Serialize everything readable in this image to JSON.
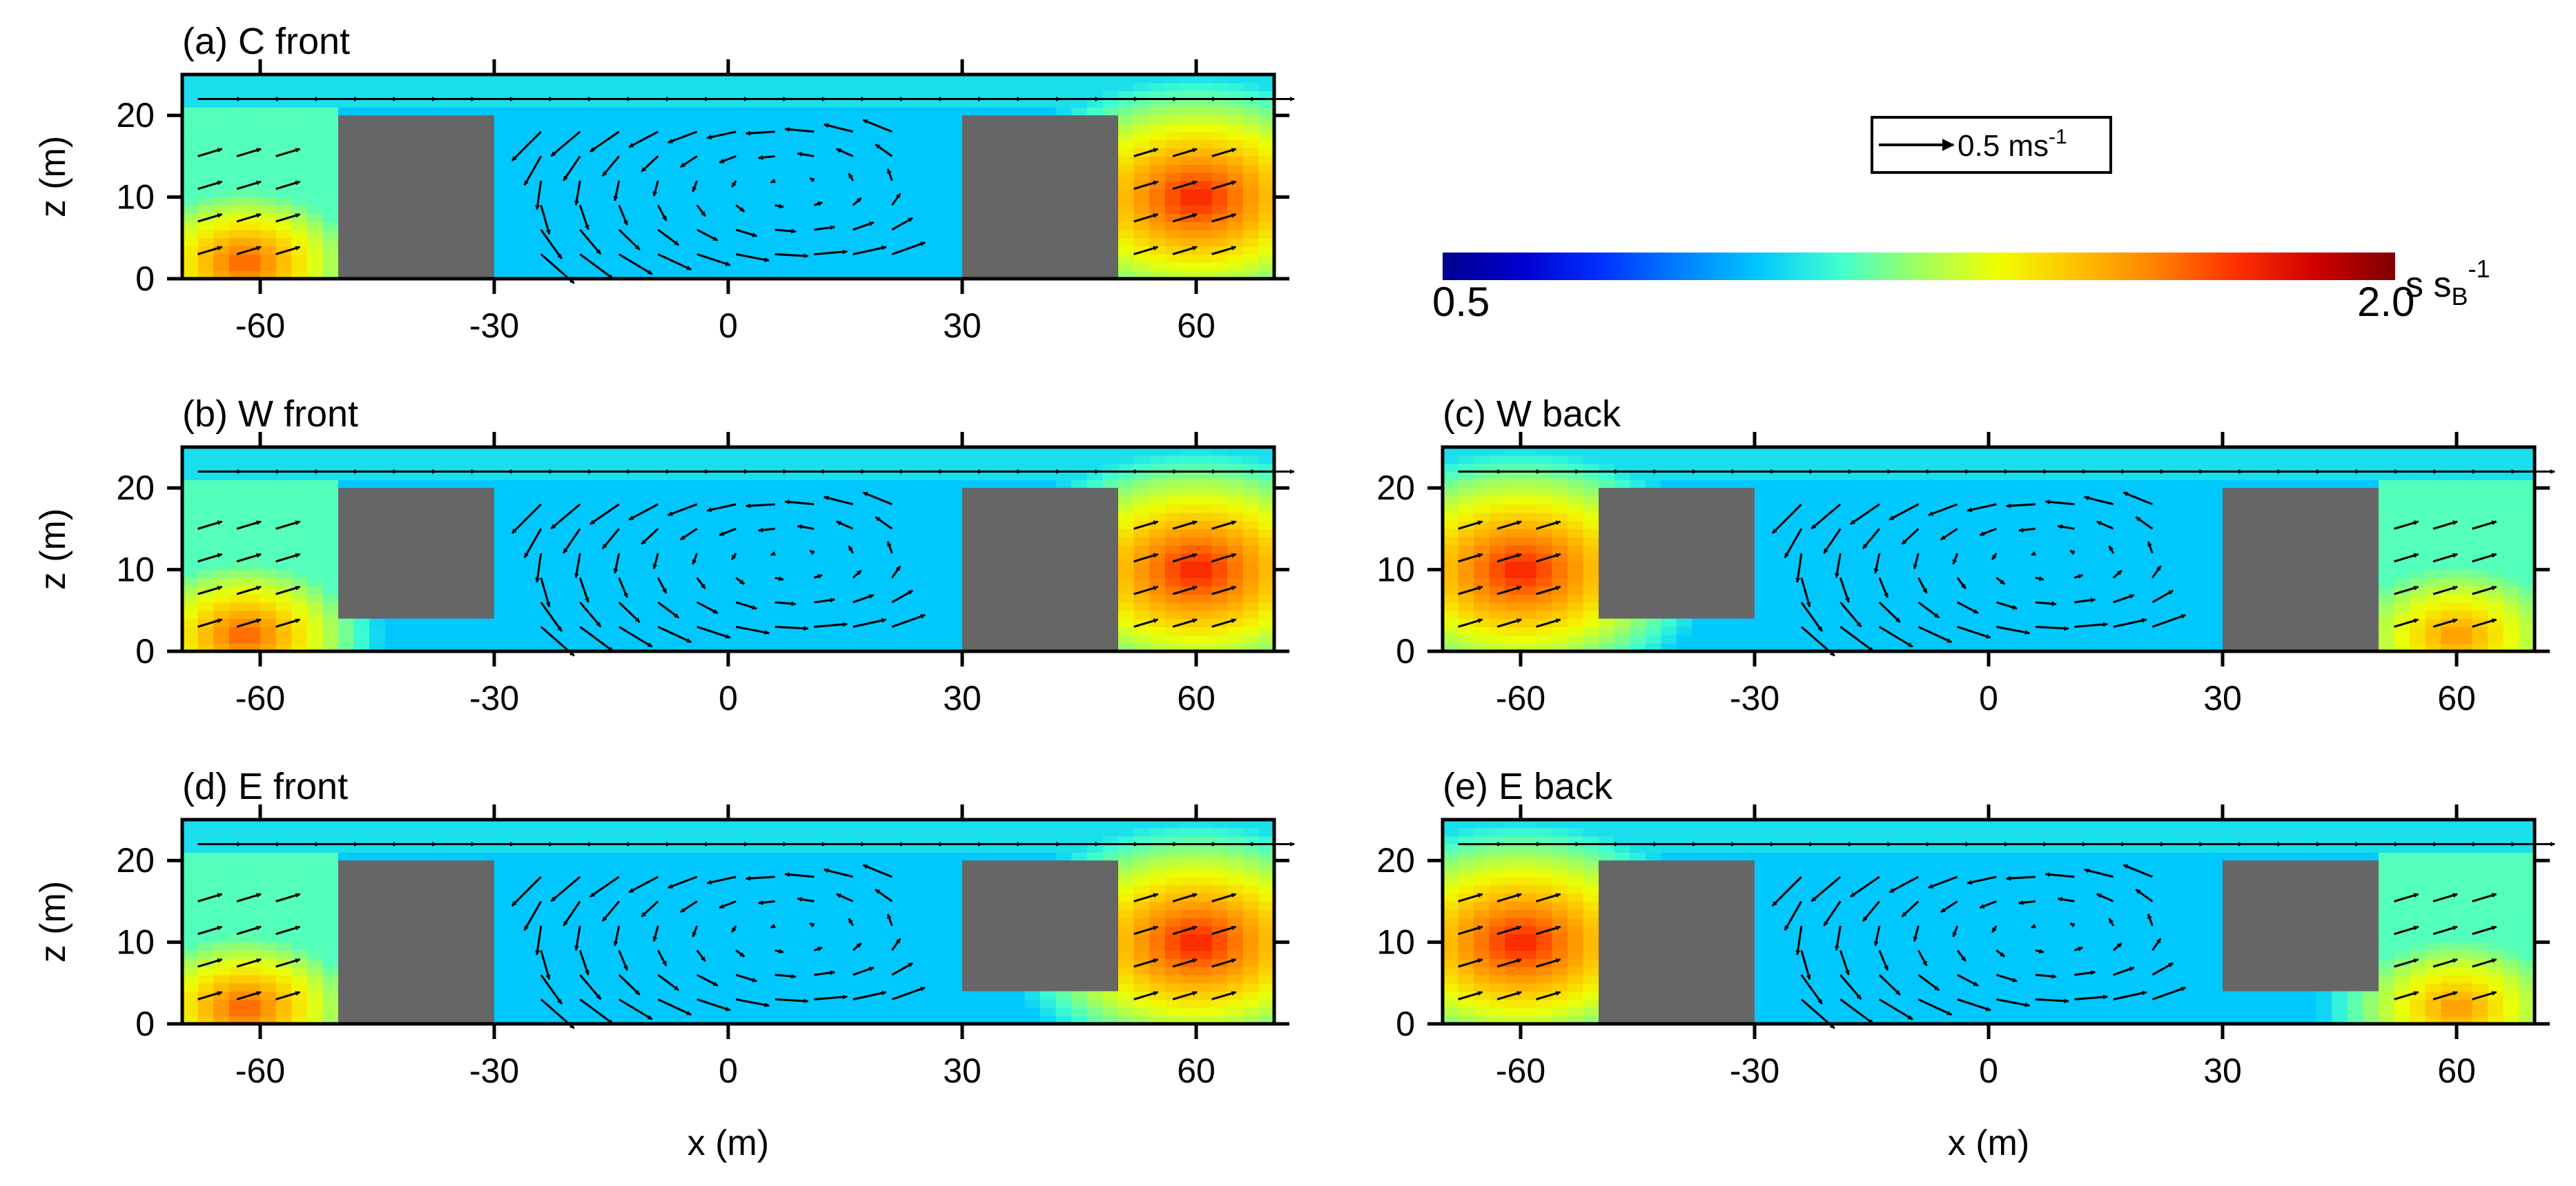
{
  "figure": {
    "colorbar": {
      "min_label": "0.5",
      "max_label": "2.0",
      "unit_main": "s  s",
      "unit_sub": "B",
      "unit_sup": "-1",
      "colors": [
        "#00008f",
        "#0000d0",
        "#0030ff",
        "#0080ff",
        "#00c8ff",
        "#40ffd0",
        "#a0ff60",
        "#f0ff00",
        "#ffc000",
        "#ff8000",
        "#ff3000",
        "#d00000",
        "#800000"
      ]
    },
    "reference_vector": {
      "label": "0.5 ms",
      "sup": "-1"
    }
  },
  "chart_data": [
    {
      "id": "a",
      "title": "(a) C front",
      "type": "heatmap",
      "xlabel": "",
      "ylabel": "z (m)",
      "xlim": [
        -70,
        70
      ],
      "ylim": [
        0,
        25
      ],
      "xticks": [
        -60,
        -30,
        0,
        30,
        60
      ],
      "yticks": [
        0,
        10,
        20
      ],
      "buildings": [
        {
          "x0": -50,
          "x1": -30,
          "z0": 0,
          "z1": 20
        },
        {
          "x0": 30,
          "x1": 50,
          "z0": 0,
          "z1": 20
        }
      ],
      "hot": [
        {
          "x": -62,
          "z": 2,
          "r": 10,
          "v": 1.7
        },
        {
          "x": 60,
          "z": 10,
          "r": 14,
          "v": 1.8
        }
      ]
    },
    {
      "id": "b",
      "title": "(b) W front",
      "type": "heatmap",
      "xlabel": "",
      "ylabel": "z (m)",
      "xlim": [
        -70,
        70
      ],
      "ylim": [
        0,
        25
      ],
      "xticks": [
        -60,
        -30,
        0,
        30,
        60
      ],
      "yticks": [
        0,
        10,
        20
      ],
      "buildings": [
        {
          "x0": -50,
          "x1": -30,
          "z0": 4,
          "z1": 20
        },
        {
          "x0": 30,
          "x1": 50,
          "z0": 0,
          "z1": 20
        }
      ],
      "hot": [
        {
          "x": -62,
          "z": 2,
          "r": 10,
          "v": 1.7
        },
        {
          "x": 60,
          "z": 10,
          "r": 14,
          "v": 1.8
        }
      ]
    },
    {
      "id": "c",
      "title": "(c) W back",
      "type": "heatmap",
      "xlabel": "",
      "ylabel": "",
      "xlim": [
        -70,
        70
      ],
      "ylim": [
        0,
        25
      ],
      "xticks": [
        -60,
        -30,
        0,
        30,
        60
      ],
      "yticks": [
        0,
        10,
        20
      ],
      "buildings": [
        {
          "x0": -50,
          "x1": -30,
          "z0": 4,
          "z1": 20
        },
        {
          "x0": 30,
          "x1": 50,
          "z0": 0,
          "z1": 20
        }
      ],
      "hot": [
        {
          "x": -60,
          "z": 10,
          "r": 14,
          "v": 1.8
        },
        {
          "x": 60,
          "z": 2,
          "r": 10,
          "v": 1.6
        }
      ]
    },
    {
      "id": "d",
      "title": "(d) E front",
      "type": "heatmap",
      "xlabel": "x (m)",
      "ylabel": "z (m)",
      "xlim": [
        -70,
        70
      ],
      "ylim": [
        0,
        25
      ],
      "xticks": [
        -60,
        -30,
        0,
        30,
        60
      ],
      "yticks": [
        0,
        10,
        20
      ],
      "buildings": [
        {
          "x0": -50,
          "x1": -30,
          "z0": 0,
          "z1": 20
        },
        {
          "x0": 30,
          "x1": 50,
          "z0": 4,
          "z1": 20
        }
      ],
      "hot": [
        {
          "x": -62,
          "z": 2,
          "r": 10,
          "v": 1.7
        },
        {
          "x": 60,
          "z": 10,
          "r": 14,
          "v": 1.8
        }
      ]
    },
    {
      "id": "e",
      "title": "(e) E back",
      "type": "heatmap",
      "xlabel": "x (m)",
      "ylabel": "",
      "xlim": [
        -70,
        70
      ],
      "ylim": [
        0,
        25
      ],
      "xticks": [
        -60,
        -30,
        0,
        30,
        60
      ],
      "yticks": [
        0,
        10,
        20
      ],
      "buildings": [
        {
          "x0": -50,
          "x1": -30,
          "z0": 0,
          "z1": 20
        },
        {
          "x0": 30,
          "x1": 50,
          "z0": 4,
          "z1": 20
        }
      ],
      "hot": [
        {
          "x": -60,
          "z": 10,
          "r": 14,
          "v": 1.8
        },
        {
          "x": 60,
          "z": 2,
          "r": 10,
          "v": 1.6
        }
      ]
    }
  ]
}
